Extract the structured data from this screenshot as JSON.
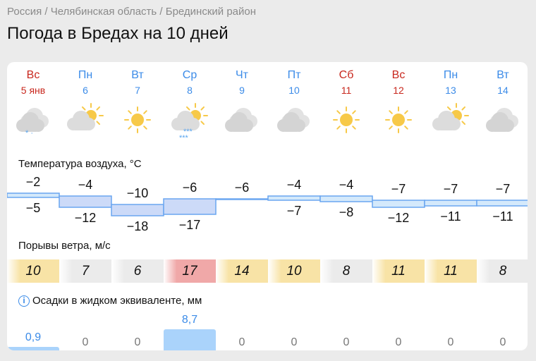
{
  "breadcrumb": "Россия / Челябинская область / Брединский район",
  "title": "Погода в Бредах на 10 дней",
  "temp_label": "Температура воздуха, °C",
  "wind_label": "Порывы ветра, м/с",
  "precip_label": "Осадки в жидком эквиваленте, мм",
  "days": [
    {
      "dow": "Вс",
      "date": "5 янв",
      "weekend": true,
      "icon": "cloudy-snow-rain-icon",
      "tmax": "−2",
      "tmin": "−5",
      "max": -2,
      "min": -5,
      "wind": "10",
      "wind_level": "yellow",
      "precip": "0,9",
      "p": 0.9
    },
    {
      "dow": "Пн",
      "date": "6",
      "weekend": false,
      "icon": "partly-cloudy-icon",
      "tmax": "−4",
      "tmin": "−12",
      "max": -4,
      "min": -12,
      "wind": "7",
      "wind_level": "gray",
      "precip": "0",
      "p": 0
    },
    {
      "dow": "Вт",
      "date": "7",
      "weekend": false,
      "icon": "sun-icon",
      "tmax": "−10",
      "tmin": "−18",
      "max": -10,
      "min": -18,
      "wind": "6",
      "wind_level": "gray",
      "precip": "0",
      "p": 0
    },
    {
      "dow": "Ср",
      "date": "8",
      "weekend": false,
      "icon": "partly-cloudy-snow-icon",
      "tmax": "−6",
      "tmin": "−17",
      "max": -6,
      "min": -17,
      "wind": "17",
      "wind_level": "red",
      "precip": "8,7",
      "p": 8.7
    },
    {
      "dow": "Чт",
      "date": "9",
      "weekend": false,
      "icon": "cloudy-icon",
      "tmax": "−6",
      "tmin": "",
      "max": -6,
      "min": -6,
      "wind": "14",
      "wind_level": "yellow",
      "precip": "0",
      "p": 0
    },
    {
      "dow": "Пт",
      "date": "10",
      "weekend": false,
      "icon": "cloudy-icon",
      "tmax": "−4",
      "tmin": "−7",
      "max": -4,
      "min": -7,
      "wind": "10",
      "wind_level": "yellow",
      "precip": "0",
      "p": 0
    },
    {
      "dow": "Сб",
      "date": "11",
      "weekend": true,
      "icon": "sun-icon",
      "tmax": "−4",
      "tmin": "−8",
      "max": -4,
      "min": -8,
      "wind": "8",
      "wind_level": "gray",
      "precip": "0",
      "p": 0
    },
    {
      "dow": "Вс",
      "date": "12",
      "weekend": true,
      "icon": "sun-icon",
      "tmax": "−7",
      "tmin": "−12",
      "max": -7,
      "min": -12,
      "wind": "11",
      "wind_level": "yellow",
      "precip": "0",
      "p": 0
    },
    {
      "dow": "Пн",
      "date": "13",
      "weekend": false,
      "icon": "partly-cloudy-icon",
      "tmax": "−7",
      "tmin": "−11",
      "max": -7,
      "min": -11,
      "wind": "11",
      "wind_level": "yellow",
      "precip": "0",
      "p": 0
    },
    {
      "dow": "Вт",
      "date": "14",
      "weekend": false,
      "icon": "cloudy-icon",
      "tmax": "−7",
      "tmin": "−11",
      "max": -7,
      "min": -11,
      "wind": "8",
      "wind_level": "gray",
      "precip": "0",
      "p": 0
    }
  ],
  "colors": {
    "weekend": "#c8281e",
    "weekday": "#3b8be8",
    "wind_yellow": "#f8e3a6",
    "wind_gray": "#ebebeb",
    "wind_red": "#f0a8a8",
    "precip": "#aad3fb"
  }
}
